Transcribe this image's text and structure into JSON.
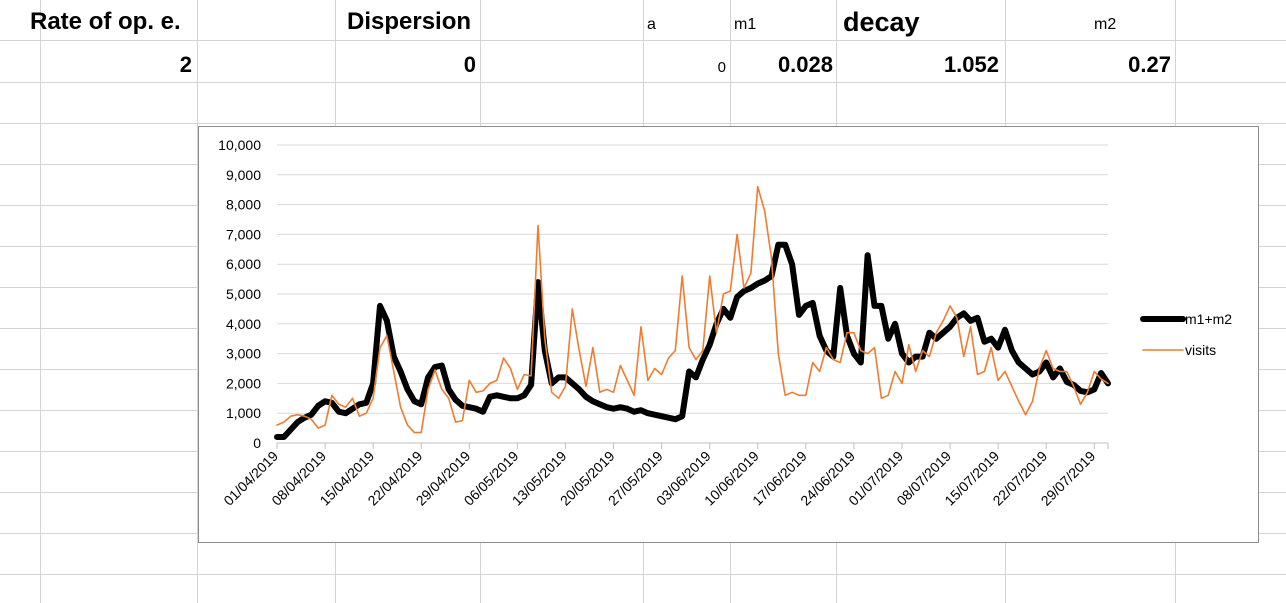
{
  "sheet": {
    "headers": {
      "rate": "Rate of op. e.",
      "dispersion": "Dispersion",
      "a": "a",
      "m1": "m1",
      "decay": "decay",
      "m2": "m2"
    },
    "values": {
      "rate": "2",
      "dispersion": "0",
      "a": "0",
      "m1": "0.028",
      "decay": "1.052",
      "m2": "0.27"
    }
  },
  "colors": {
    "m1m2": "#000000",
    "visits": "#ED7D31",
    "grid": "#d9d9d9"
  },
  "chart_data": {
    "type": "line",
    "title": "",
    "xlabel": "",
    "ylabel": "",
    "ylim": [
      0,
      10000
    ],
    "yticks": [
      "0",
      "1,000",
      "2,000",
      "3,000",
      "4,000",
      "5,000",
      "6,000",
      "7,000",
      "8,000",
      "9,000",
      "10,000"
    ],
    "x_tick_labels": [
      "01/04/2019",
      "08/04/2019",
      "15/04/2019",
      "22/04/2019",
      "29/04/2019",
      "06/05/2019",
      "13/05/2019",
      "20/05/2019",
      "27/05/2019",
      "03/06/2019",
      "10/06/2019",
      "17/06/2019",
      "24/06/2019",
      "01/07/2019",
      "08/07/2019",
      "15/07/2019",
      "22/07/2019",
      "29/07/2019"
    ],
    "x_start": "01/04/2019",
    "x_end": "31/07/2019",
    "grid": true,
    "legend_position": "right",
    "series": [
      {
        "name": "m1+m2",
        "points": [
          [
            "01/04/2019",
            200
          ],
          [
            "02/04/2019",
            200
          ],
          [
            "03/04/2019",
            450
          ],
          [
            "04/04/2019",
            700
          ],
          [
            "05/04/2019",
            850
          ],
          [
            "06/04/2019",
            950
          ],
          [
            "07/04/2019",
            1250
          ],
          [
            "08/04/2019",
            1400
          ],
          [
            "09/04/2019",
            1350
          ],
          [
            "10/04/2019",
            1050
          ],
          [
            "11/04/2019",
            1000
          ],
          [
            "12/04/2019",
            1150
          ],
          [
            "13/04/2019",
            1300
          ],
          [
            "14/04/2019",
            1350
          ],
          [
            "15/04/2019",
            2000
          ],
          [
            "16/04/2019",
            4600
          ],
          [
            "17/04/2019",
            4100
          ],
          [
            "18/04/2019",
            2900
          ],
          [
            "19/04/2019",
            2400
          ],
          [
            "20/04/2019",
            1800
          ],
          [
            "21/04/2019",
            1400
          ],
          [
            "22/04/2019",
            1300
          ],
          [
            "23/04/2019",
            2200
          ],
          [
            "24/04/2019",
            2550
          ],
          [
            "25/04/2019",
            2600
          ],
          [
            "26/04/2019",
            1800
          ],
          [
            "27/04/2019",
            1450
          ],
          [
            "28/04/2019",
            1250
          ],
          [
            "29/04/2019",
            1200
          ],
          [
            "30/04/2019",
            1150
          ],
          [
            "01/05/2019",
            1050
          ],
          [
            "02/05/2019",
            1550
          ],
          [
            "03/05/2019",
            1600
          ],
          [
            "04/05/2019",
            1550
          ],
          [
            "05/05/2019",
            1500
          ],
          [
            "06/05/2019",
            1500
          ],
          [
            "07/05/2019",
            1600
          ],
          [
            "08/05/2019",
            1950
          ],
          [
            "09/05/2019",
            5400
          ],
          [
            "10/05/2019",
            3100
          ],
          [
            "11/05/2019",
            2000
          ],
          [
            "12/05/2019",
            2200
          ],
          [
            "13/05/2019",
            2200
          ],
          [
            "14/05/2019",
            2000
          ],
          [
            "15/05/2019",
            1800
          ],
          [
            "16/05/2019",
            1550
          ],
          [
            "17/05/2019",
            1400
          ],
          [
            "18/05/2019",
            1300
          ],
          [
            "19/05/2019",
            1200
          ],
          [
            "20/05/2019",
            1150
          ],
          [
            "21/05/2019",
            1200
          ],
          [
            "22/05/2019",
            1150
          ],
          [
            "23/05/2019",
            1050
          ],
          [
            "24/05/2019",
            1100
          ],
          [
            "25/05/2019",
            1000
          ],
          [
            "26/05/2019",
            950
          ],
          [
            "27/05/2019",
            900
          ],
          [
            "28/05/2019",
            850
          ],
          [
            "29/05/2019",
            800
          ],
          [
            "30/05/2019",
            900
          ],
          [
            "31/05/2019",
            2400
          ],
          [
            "01/06/2019",
            2200
          ],
          [
            "02/06/2019",
            2800
          ],
          [
            "03/06/2019",
            3300
          ],
          [
            "04/06/2019",
            4000
          ],
          [
            "05/06/2019",
            4500
          ],
          [
            "06/06/2019",
            4200
          ],
          [
            "07/06/2019",
            4900
          ],
          [
            "08/06/2019",
            5100
          ],
          [
            "09/06/2019",
            5200
          ],
          [
            "10/06/2019",
            5350
          ],
          [
            "11/06/2019",
            5450
          ],
          [
            "12/06/2019",
            5600
          ],
          [
            "13/06/2019",
            6650
          ],
          [
            "14/06/2019",
            6650
          ],
          [
            "15/06/2019",
            6000
          ],
          [
            "16/06/2019",
            4300
          ],
          [
            "17/06/2019",
            4600
          ],
          [
            "18/06/2019",
            4700
          ],
          [
            "19/06/2019",
            3600
          ],
          [
            "20/06/2019",
            3100
          ],
          [
            "21/06/2019",
            2900
          ],
          [
            "22/06/2019",
            5200
          ],
          [
            "23/06/2019",
            3600
          ],
          [
            "24/06/2019",
            3000
          ],
          [
            "25/06/2019",
            2700
          ],
          [
            "26/06/2019",
            6300
          ],
          [
            "27/06/2019",
            4600
          ],
          [
            "28/06/2019",
            4600
          ],
          [
            "29/06/2019",
            3500
          ],
          [
            "30/06/2019",
            4000
          ],
          [
            "01/07/2019",
            3000
          ],
          [
            "02/07/2019",
            2700
          ],
          [
            "03/07/2019",
            2900
          ],
          [
            "04/07/2019",
            2900
          ],
          [
            "05/07/2019",
            3700
          ],
          [
            "06/07/2019",
            3500
          ],
          [
            "07/07/2019",
            3700
          ],
          [
            "08/07/2019",
            3900
          ],
          [
            "09/07/2019",
            4200
          ],
          [
            "10/07/2019",
            4350
          ],
          [
            "11/07/2019",
            4100
          ],
          [
            "12/07/2019",
            4200
          ],
          [
            "13/07/2019",
            3400
          ],
          [
            "14/07/2019",
            3500
          ],
          [
            "15/07/2019",
            3200
          ],
          [
            "16/07/2019",
            3800
          ],
          [
            "17/07/2019",
            3100
          ],
          [
            "18/07/2019",
            2700
          ],
          [
            "19/07/2019",
            2500
          ],
          [
            "20/07/2019",
            2300
          ],
          [
            "21/07/2019",
            2400
          ],
          [
            "22/07/2019",
            2700
          ],
          [
            "23/07/2019",
            2200
          ],
          [
            "24/07/2019",
            2500
          ],
          [
            "25/07/2019",
            2050
          ],
          [
            "26/07/2019",
            1950
          ],
          [
            "27/07/2019",
            1750
          ],
          [
            "28/07/2019",
            1700
          ],
          [
            "29/07/2019",
            1800
          ],
          [
            "30/07/2019",
            2350
          ],
          [
            "31/07/2019",
            2000
          ]
        ]
      },
      {
        "name": "visits",
        "points": [
          [
            "01/04/2019",
            600
          ],
          [
            "02/04/2019",
            700
          ],
          [
            "03/04/2019",
            900
          ],
          [
            "04/04/2019",
            950
          ],
          [
            "05/04/2019",
            900
          ],
          [
            "06/04/2019",
            800
          ],
          [
            "07/04/2019",
            500
          ],
          [
            "08/04/2019",
            600
          ],
          [
            "09/04/2019",
            1600
          ],
          [
            "10/04/2019",
            1300
          ],
          [
            "11/04/2019",
            1200
          ],
          [
            "12/04/2019",
            1500
          ],
          [
            "13/04/2019",
            900
          ],
          [
            "14/04/2019",
            1000
          ],
          [
            "15/04/2019",
            1500
          ],
          [
            "16/04/2019",
            3200
          ],
          [
            "17/04/2019",
            3600
          ],
          [
            "18/04/2019",
            2400
          ],
          [
            "19/04/2019",
            1200
          ],
          [
            "20/04/2019",
            600
          ],
          [
            "21/04/2019",
            350
          ],
          [
            "22/04/2019",
            350
          ],
          [
            "23/04/2019",
            1800
          ],
          [
            "24/04/2019",
            2450
          ],
          [
            "25/04/2019",
            1800
          ],
          [
            "26/04/2019",
            1500
          ],
          [
            "27/04/2019",
            700
          ],
          [
            "28/04/2019",
            750
          ],
          [
            "29/04/2019",
            2100
          ],
          [
            "30/04/2019",
            1700
          ],
          [
            "01/05/2019",
            1750
          ],
          [
            "02/05/2019",
            2000
          ],
          [
            "03/05/2019",
            2100
          ],
          [
            "04/05/2019",
            2850
          ],
          [
            "05/05/2019",
            2500
          ],
          [
            "06/05/2019",
            1800
          ],
          [
            "07/05/2019",
            2300
          ],
          [
            "08/05/2019",
            2250
          ],
          [
            "09/05/2019",
            7300
          ],
          [
            "10/05/2019",
            3500
          ],
          [
            "11/05/2019",
            1700
          ],
          [
            "12/05/2019",
            1500
          ],
          [
            "13/05/2019",
            1900
          ],
          [
            "14/05/2019",
            4500
          ],
          [
            "15/05/2019",
            3100
          ],
          [
            "16/05/2019",
            1900
          ],
          [
            "17/05/2019",
            3200
          ],
          [
            "18/05/2019",
            1700
          ],
          [
            "19/05/2019",
            1800
          ],
          [
            "20/05/2019",
            1700
          ],
          [
            "21/05/2019",
            2600
          ],
          [
            "22/05/2019",
            2100
          ],
          [
            "23/05/2019",
            1600
          ],
          [
            "24/05/2019",
            3900
          ],
          [
            "25/05/2019",
            2100
          ],
          [
            "26/05/2019",
            2500
          ],
          [
            "27/05/2019",
            2300
          ],
          [
            "28/05/2019",
            2850
          ],
          [
            "29/05/2019",
            3100
          ],
          [
            "30/05/2019",
            5600
          ],
          [
            "31/05/2019",
            3200
          ],
          [
            "01/06/2019",
            2800
          ],
          [
            "02/06/2019",
            3100
          ],
          [
            "03/06/2019",
            5600
          ],
          [
            "04/06/2019",
            3700
          ],
          [
            "05/06/2019",
            5000
          ],
          [
            "06/06/2019",
            5100
          ],
          [
            "07/06/2019",
            7000
          ],
          [
            "08/06/2019",
            5200
          ],
          [
            "09/06/2019",
            5700
          ],
          [
            "10/06/2019",
            8600
          ],
          [
            "11/06/2019",
            7800
          ],
          [
            "12/06/2019",
            6200
          ],
          [
            "13/06/2019",
            3000
          ],
          [
            "14/06/2019",
            1600
          ],
          [
            "15/06/2019",
            1700
          ],
          [
            "16/06/2019",
            1600
          ],
          [
            "17/06/2019",
            1600
          ],
          [
            "18/06/2019",
            2700
          ],
          [
            "19/06/2019",
            2400
          ],
          [
            "20/06/2019",
            3200
          ],
          [
            "21/06/2019",
            2800
          ],
          [
            "22/06/2019",
            2700
          ],
          [
            "23/06/2019",
            3700
          ],
          [
            "24/06/2019",
            3700
          ],
          [
            "25/06/2019",
            3100
          ],
          [
            "26/06/2019",
            3000
          ],
          [
            "27/06/2019",
            3200
          ],
          [
            "28/06/2019",
            1500
          ],
          [
            "29/06/2019",
            1600
          ],
          [
            "30/06/2019",
            2400
          ],
          [
            "01/07/2019",
            2000
          ],
          [
            "02/07/2019",
            3300
          ],
          [
            "03/07/2019",
            2400
          ],
          [
            "04/07/2019",
            3100
          ],
          [
            "05/07/2019",
            2900
          ],
          [
            "06/07/2019",
            3700
          ],
          [
            "07/07/2019",
            4100
          ],
          [
            "08/07/2019",
            4600
          ],
          [
            "09/07/2019",
            4200
          ],
          [
            "10/07/2019",
            2900
          ],
          [
            "11/07/2019",
            3900
          ],
          [
            "12/07/2019",
            2300
          ],
          [
            "13/07/2019",
            2400
          ],
          [
            "14/07/2019",
            3200
          ],
          [
            "15/07/2019",
            2100
          ],
          [
            "16/07/2019",
            2400
          ],
          [
            "17/07/2019",
            1900
          ],
          [
            "18/07/2019",
            1400
          ],
          [
            "19/07/2019",
            950
          ],
          [
            "20/07/2019",
            1400
          ],
          [
            "21/07/2019",
            2500
          ],
          [
            "22/07/2019",
            3100
          ],
          [
            "23/07/2019",
            2500
          ],
          [
            "24/07/2019",
            2400
          ],
          [
            "25/07/2019",
            2400
          ],
          [
            "26/07/2019",
            1900
          ],
          [
            "27/07/2019",
            1300
          ],
          [
            "28/07/2019",
            1700
          ],
          [
            "29/07/2019",
            2400
          ],
          [
            "30/07/2019",
            2150
          ],
          [
            "31/07/2019",
            2000
          ]
        ]
      }
    ]
  }
}
